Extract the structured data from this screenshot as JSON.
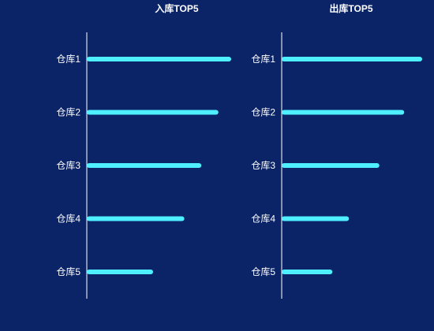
{
  "chart_data": [
    {
      "type": "bar",
      "orientation": "horizontal",
      "title": "入库TOP5",
      "categories": [
        "仓库1",
        "仓库2",
        "仓库3",
        "仓库4",
        "仓库5"
      ],
      "values": [
        100,
        91,
        79,
        67,
        45
      ],
      "xlim": [
        0,
        100
      ],
      "grid": false,
      "bar_color": "#4ef0ff"
    },
    {
      "type": "bar",
      "orientation": "horizontal",
      "title": "出库TOP5",
      "categories": [
        "仓库1",
        "仓库2",
        "仓库3",
        "仓库4",
        "仓库5"
      ],
      "values": [
        100,
        87,
        69,
        47,
        35
      ],
      "xlim": [
        0,
        100
      ],
      "grid": false,
      "bar_color": "#4ef0ff"
    }
  ],
  "colors": {
    "background": "#0b2467",
    "axis": "#ffffff",
    "text": "#ffffff"
  }
}
